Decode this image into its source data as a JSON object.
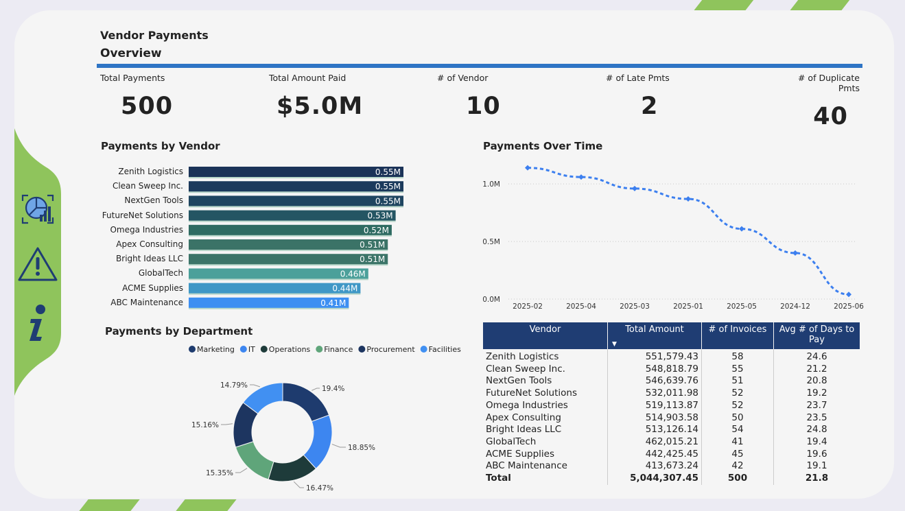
{
  "header": {
    "title": "Vendor Payments",
    "subtitle": "Overview"
  },
  "kpis": [
    {
      "label": "Total Payments",
      "value": "500"
    },
    {
      "label": "Total Amount Paid",
      "value": "$5.0M"
    },
    {
      "label": "# of Vendor",
      "value": "10"
    },
    {
      "label": "# of Late Pmts",
      "value": "2"
    },
    {
      "label": "# of Duplicate Pmts",
      "value": "40"
    }
  ],
  "nav": {
    "items": [
      "dashboard-chart-icon",
      "warning-icon",
      "info-icon"
    ]
  },
  "colors": {
    "accent": "#2e74c5",
    "green": "#8fc45c",
    "navy": "#1f3d73"
  },
  "chart_data": [
    {
      "type": "bar",
      "orientation": "horizontal",
      "title": "Payments by Vendor",
      "categories": [
        "Zenith Logistics",
        "Clean Sweep Inc.",
        "NextGen Tools",
        "FutureNet Solutions",
        "Omega Industries",
        "Apex Consulting",
        "Bright Ideas LLC",
        "GlobalTech",
        "ACME Supplies",
        "ABC Maintenance"
      ],
      "values": [
        0.55,
        0.55,
        0.55,
        0.53,
        0.52,
        0.51,
        0.51,
        0.46,
        0.44,
        0.41
      ],
      "labels": [
        "0.55M",
        "0.55M",
        "0.55M",
        "0.53M",
        "0.52M",
        "0.51M",
        "0.51M",
        "0.46M",
        "0.44M",
        "0.41M"
      ],
      "colors": [
        "#1b3358",
        "#1c3a5c",
        "#1f4560",
        "#245563",
        "#2f6b62",
        "#3b7367",
        "#3c7468",
        "#4ba09a",
        "#3f97c6",
        "#3d8ff2"
      ]
    },
    {
      "type": "line",
      "title": "Payments Over Time",
      "categories": [
        "2025-02",
        "2025-04",
        "2025-03",
        "2025-01",
        "2025-05",
        "2024-12",
        "2025-06"
      ],
      "values": [
        1.14,
        1.06,
        0.96,
        0.87,
        0.61,
        0.4,
        0.04
      ],
      "yticks": [
        "1.0M",
        "0.5M",
        "0.0M"
      ],
      "ytick_values": [
        1.0,
        0.5,
        0.0
      ],
      "ylim": [
        0,
        1.15
      ],
      "color": "#3c7fef"
    },
    {
      "type": "pie",
      "title": "Payments by Department",
      "labels": [
        "Marketing",
        "IT",
        "Operations",
        "Finance",
        "Procurement",
        "Facilities"
      ],
      "values": [
        19.4,
        18.85,
        16.47,
        15.35,
        15.16,
        14.79
      ],
      "value_labels": [
        "19.4%",
        "18.85%",
        "16.47%",
        "15.35%",
        "15.16%",
        "14.79%"
      ],
      "colors": [
        "#1e3b6e",
        "#3d86f0",
        "#1e3b3a",
        "#5fa57a",
        "#1d3560",
        "#4190f2"
      ]
    }
  ],
  "table": {
    "headers": [
      "Vendor",
      "Total Amount",
      "# of Invoices",
      "Avg # of Days to Pay"
    ],
    "rows": [
      [
        "Zenith Logistics",
        "551,579.43",
        "58",
        "24.6"
      ],
      [
        "Clean Sweep Inc.",
        "548,818.79",
        "55",
        "21.2"
      ],
      [
        "NextGen Tools",
        "546,639.76",
        "51",
        "20.8"
      ],
      [
        "FutureNet Solutions",
        "532,011.98",
        "52",
        "19.2"
      ],
      [
        "Omega Industries",
        "519,113.87",
        "52",
        "23.7"
      ],
      [
        "Apex Consulting",
        "514,903.58",
        "50",
        "23.5"
      ],
      [
        "Bright Ideas LLC",
        "513,126.14",
        "54",
        "24.8"
      ],
      [
        "GlobalTech",
        "462,015.21",
        "41",
        "19.4"
      ],
      [
        "ACME Supplies",
        "442,425.45",
        "45",
        "19.6"
      ],
      [
        "ABC Maintenance",
        "413,673.24",
        "42",
        "19.1"
      ]
    ],
    "total": [
      "Total",
      "5,044,307.45",
      "500",
      "21.8"
    ]
  }
}
